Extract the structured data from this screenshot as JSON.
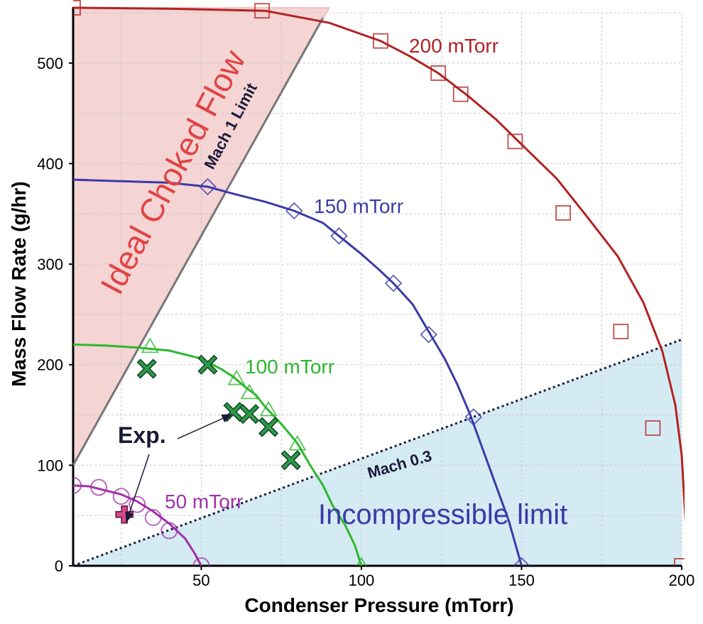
{
  "chart_data": {
    "type": "line",
    "xlabel": "Condenser Pressure (mTorr)",
    "ylabel": "Mass Flow Rate (g/hr)",
    "xlim": [
      10,
      200
    ],
    "ylim": [
      0,
      550
    ],
    "x_ticks": [
      50,
      100,
      150,
      200
    ],
    "y_ticks": [
      0,
      100,
      200,
      300,
      400,
      500
    ],
    "grid": true,
    "series": [
      {
        "name": "200 mTorr",
        "color": "#b22222",
        "marker": "square",
        "line": [
          [
            10,
            555
          ],
          [
            40,
            554
          ],
          [
            70,
            552
          ],
          [
            90,
            540
          ],
          [
            106,
            522
          ],
          [
            115,
            507
          ],
          [
            124,
            490
          ],
          [
            133,
            468
          ],
          [
            142,
            444
          ],
          [
            151,
            416
          ],
          [
            161,
            385
          ],
          [
            170,
            349
          ],
          [
            180,
            308
          ],
          [
            188,
            262
          ],
          [
            194,
            213
          ],
          [
            198,
            160
          ],
          [
            200,
            110
          ],
          [
            201,
            55
          ],
          [
            202,
            0
          ]
        ],
        "markers": [
          [
            10,
            555
          ],
          [
            69,
            552
          ],
          [
            106,
            522
          ],
          [
            124,
            490
          ],
          [
            131,
            469
          ],
          [
            148,
            422
          ],
          [
            163,
            351
          ],
          [
            181,
            233
          ],
          [
            191,
            137
          ],
          [
            200,
            0
          ]
        ]
      },
      {
        "name": "150 mTorr",
        "color": "#3a3aa8",
        "marker": "diamond",
        "line": [
          [
            10,
            384
          ],
          [
            40,
            381
          ],
          [
            52,
            377
          ],
          [
            60,
            370
          ],
          [
            70,
            362
          ],
          [
            79,
            353
          ],
          [
            88,
            341
          ],
          [
            93,
            328
          ],
          [
            100,
            310
          ],
          [
            105,
            296
          ],
          [
            110,
            281
          ],
          [
            116,
            260
          ],
          [
            121,
            233
          ],
          [
            126,
            206
          ],
          [
            130,
            180
          ],
          [
            134,
            150
          ],
          [
            138,
            115
          ],
          [
            142,
            80
          ],
          [
            146,
            45
          ],
          [
            150,
            0
          ]
        ],
        "markers": [
          [
            52,
            377
          ],
          [
            79,
            353
          ],
          [
            93,
            328
          ],
          [
            110,
            281
          ],
          [
            121,
            230
          ],
          [
            135,
            148
          ],
          [
            150,
            0
          ]
        ]
      },
      {
        "name": "100 mTorr",
        "color": "#2db82d",
        "marker": "triangle",
        "line": [
          [
            10,
            220
          ],
          [
            20,
            219
          ],
          [
            30,
            217
          ],
          [
            40,
            214
          ],
          [
            50,
            206
          ],
          [
            56,
            196
          ],
          [
            60,
            188
          ],
          [
            64,
            177
          ],
          [
            67,
            170
          ],
          [
            70,
            158
          ],
          [
            75,
            141
          ],
          [
            80,
            122
          ],
          [
            84,
            100
          ],
          [
            88,
            80
          ],
          [
            91,
            60
          ],
          [
            95,
            40
          ],
          [
            98,
            20
          ],
          [
            100,
            0
          ]
        ],
        "markers": [
          [
            34,
            218
          ],
          [
            61,
            186
          ],
          [
            65,
            172
          ],
          [
            71,
            155
          ],
          [
            80,
            121
          ],
          [
            100,
            0
          ]
        ]
      },
      {
        "name": "50 mTorr",
        "color": "#a030a8",
        "marker": "circle",
        "line": [
          [
            10,
            80
          ],
          [
            15,
            79
          ],
          [
            20,
            75
          ],
          [
            25,
            71
          ],
          [
            30,
            64
          ],
          [
            35,
            54
          ],
          [
            40,
            42
          ],
          [
            45,
            27
          ],
          [
            48,
            12
          ],
          [
            50,
            0
          ]
        ],
        "markers": [
          [
            10,
            80
          ],
          [
            18,
            78
          ],
          [
            25,
            69
          ],
          [
            30,
            61
          ],
          [
            35,
            48
          ],
          [
            40,
            35
          ],
          [
            50,
            0
          ]
        ]
      }
    ],
    "experiment": {
      "name": "Exp.",
      "points": [
        [
          33,
          196
        ],
        [
          52,
          200
        ],
        [
          60,
          153
        ],
        [
          65,
          151
        ],
        [
          71,
          138
        ],
        [
          78,
          105
        ]
      ],
      "highlight": [
        [
          26,
          51
        ]
      ]
    },
    "regions": {
      "choked": {
        "label": "Ideal Choked Flow",
        "limit_label": "Mach 1 Limit",
        "polygon": [
          [
            10,
            100
          ],
          [
            10,
            555
          ],
          [
            90,
            555
          ]
        ],
        "line": [
          [
            10,
            100
          ],
          [
            88,
            545
          ]
        ]
      },
      "incompressible": {
        "label": "Incompressible limit",
        "limit_label": "Mach 0.3",
        "polygon": [
          [
            10,
            0
          ],
          [
            200,
            225
          ],
          [
            200,
            0
          ]
        ],
        "line": [
          [
            10,
            0
          ],
          [
            200,
            225
          ]
        ]
      }
    },
    "colors": {
      "choked_fill": "#f3cccc",
      "incompressible_fill": "#d5ebf3",
      "grid": "#c8c8c8",
      "exp_marker": "#2e9a4a",
      "highlight_marker": "#d64a8c"
    }
  }
}
